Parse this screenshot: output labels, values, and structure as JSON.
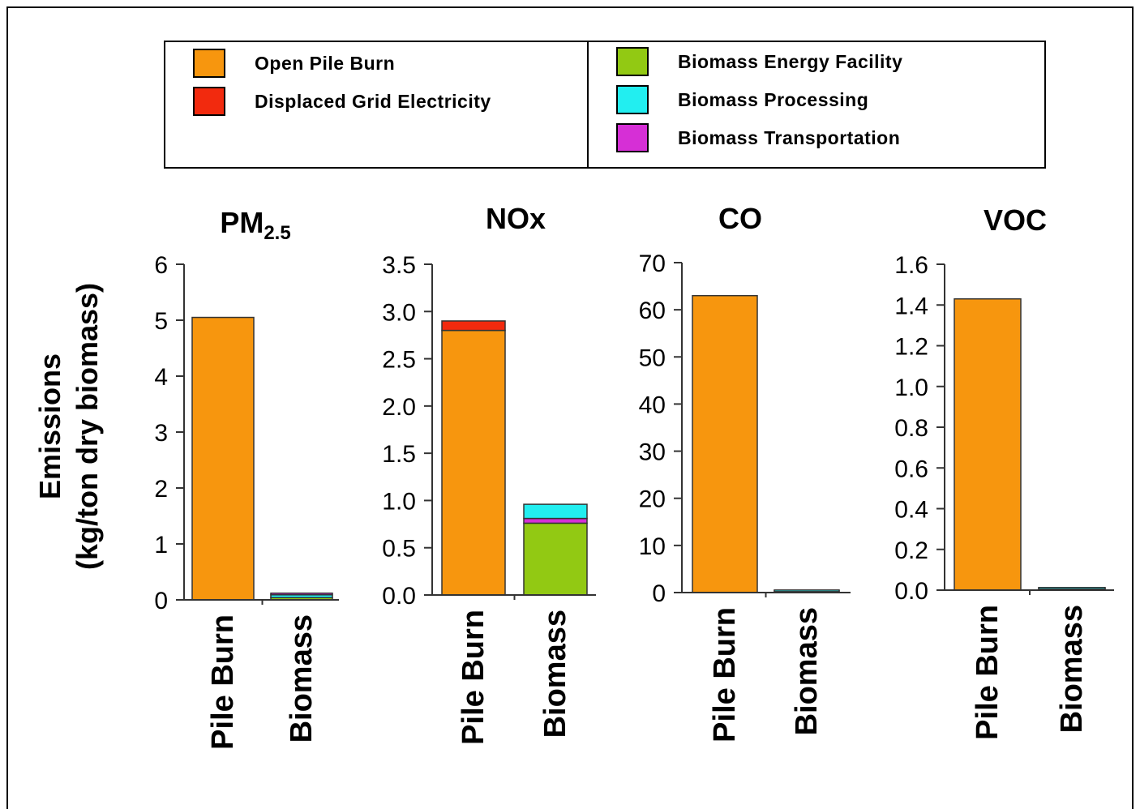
{
  "legend": {
    "items": [
      {
        "label": "Open Pile Burn",
        "color": "#F7960E"
      },
      {
        "label": "Displaced Grid Electricity",
        "color": "#F22A0E"
      },
      {
        "label": "Biomass Energy Facility",
        "color": "#92C913"
      },
      {
        "label": "Biomass Processing",
        "color": "#22EEF0"
      },
      {
        "label": "Biomass Transportation",
        "color": "#D62FD6"
      }
    ]
  },
  "ylabel_line1": "Emissions",
  "ylabel_line2": "(kg/ton dry biomass)",
  "chart_data": [
    {
      "type": "bar",
      "stacked": true,
      "title": "PM",
      "title_sub": "2.5",
      "categories": [
        "Pile Burn",
        "Biomass"
      ],
      "ylim": [
        0,
        6
      ],
      "yticks": [
        "0",
        "1",
        "2",
        "3",
        "4",
        "5",
        "6"
      ],
      "series": [
        {
          "name": "Open Pile Burn",
          "values": [
            5.05,
            0
          ]
        },
        {
          "name": "Displaced Grid Electricity",
          "values": [
            0,
            0
          ]
        },
        {
          "name": "Biomass Energy Facility",
          "values": [
            0,
            0.04
          ]
        },
        {
          "name": "Biomass Processing",
          "values": [
            0,
            0.05
          ]
        },
        {
          "name": "Biomass Transportation",
          "values": [
            0,
            0.03
          ]
        }
      ]
    },
    {
      "type": "bar",
      "stacked": true,
      "title": "NOx",
      "title_sub": "",
      "categories": [
        "Pile Burn",
        "Biomass"
      ],
      "ylim": [
        0,
        3.5
      ],
      "yticks": [
        "0.0",
        "0.5",
        "1.0",
        "1.5",
        "2.0",
        "2.5",
        "3.0",
        "3.5"
      ],
      "series": [
        {
          "name": "Open Pile Burn",
          "values": [
            2.8,
            0
          ]
        },
        {
          "name": "Displaced Grid Electricity",
          "values": [
            0.1,
            0
          ]
        },
        {
          "name": "Biomass Energy Facility",
          "values": [
            0,
            0.76
          ]
        },
        {
          "name": "Biomass Transportation",
          "values": [
            0,
            0.05
          ]
        },
        {
          "name": "Biomass Processing",
          "values": [
            0,
            0.15
          ]
        }
      ]
    },
    {
      "type": "bar",
      "stacked": true,
      "title": "CO",
      "title_sub": "",
      "categories": [
        "Pile Burn",
        "Biomass"
      ],
      "ylim": [
        0,
        70
      ],
      "yticks": [
        "0",
        "10",
        "20",
        "30",
        "40",
        "50",
        "60",
        "70"
      ],
      "series": [
        {
          "name": "Open Pile Burn",
          "values": [
            63,
            0
          ]
        },
        {
          "name": "Biomass Energy Facility",
          "values": [
            0,
            0.2
          ]
        },
        {
          "name": "Biomass Processing",
          "values": [
            0,
            0.1
          ]
        }
      ]
    },
    {
      "type": "bar",
      "stacked": true,
      "title": "VOC",
      "title_sub": "",
      "categories": [
        "Pile Burn",
        "Biomass"
      ],
      "ylim": [
        0,
        1.6
      ],
      "yticks": [
        "0.0",
        "0.2",
        "0.4",
        "0.6",
        "0.8",
        "1.0",
        "1.2",
        "1.4",
        "1.6"
      ],
      "series": [
        {
          "name": "Open Pile Burn",
          "values": [
            1.43,
            0
          ]
        },
        {
          "name": "Biomass Energy Facility",
          "values": [
            0,
            0.005
          ]
        },
        {
          "name": "Biomass Processing",
          "values": [
            0,
            0.005
          ]
        }
      ]
    }
  ]
}
